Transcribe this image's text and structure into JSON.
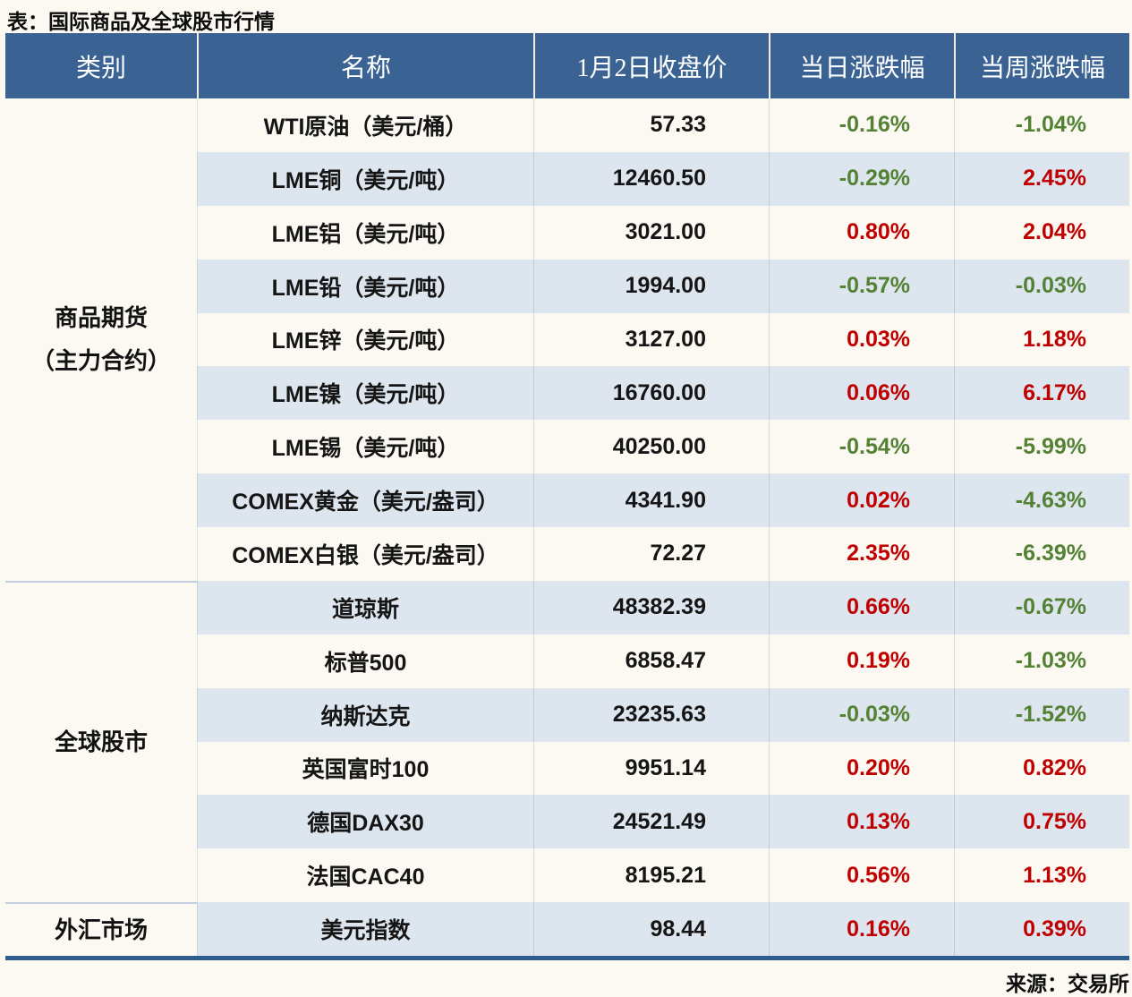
{
  "title": "表：国际商品及全球股市行情",
  "source": "来源：交易所",
  "table": {
    "headers": [
      "类别",
      "名称",
      "1月2日收盘价",
      "当日涨跌幅",
      "当周涨跌幅"
    ]
  },
  "colors": {
    "page_bg": "#fbf9f1",
    "header_bg": "#3a6394",
    "header_text": "#ffffff",
    "stripe_bg": "#dde5ee",
    "up_red": "#c00000",
    "down_green": "#548235",
    "bottom_border": "#2e5c8e",
    "divider": "#c3cfe0"
  },
  "chart_data": {
    "type": "table",
    "title": "表：国际商品及全球股市行情",
    "columns": [
      "类别",
      "名称",
      "1月2日收盘价",
      "当日涨跌幅",
      "当周涨跌幅"
    ],
    "color_rule": "positive change = red (#c00000), negative change = green (#548235); rows alternate cream/light-blue stripes",
    "groups": [
      {
        "category": "商品期货（主力合约）",
        "category_lines": [
          "商品期货",
          "（主力合约）"
        ],
        "rows": [
          [
            "WTI原油（美元/桶）",
            "57.33",
            "-0.16%",
            "-1.04%"
          ],
          [
            "LME铜（美元/吨）",
            "12460.50",
            "-0.29%",
            "2.45%"
          ],
          [
            "LME铝（美元/吨）",
            "3021.00",
            "0.80%",
            "2.04%"
          ],
          [
            "LME铅（美元/吨）",
            "1994.00",
            "-0.57%",
            "-0.03%"
          ],
          [
            "LME锌（美元/吨）",
            "3127.00",
            "0.03%",
            "1.18%"
          ],
          [
            "LME镍（美元/吨）",
            "16760.00",
            "0.06%",
            "6.17%"
          ],
          [
            "LME锡（美元/吨）",
            "40250.00",
            "-0.54%",
            "-5.99%"
          ],
          [
            "COMEX黄金（美元/盎司）",
            "4341.90",
            "0.02%",
            "-4.63%"
          ],
          [
            "COMEX白银（美元/盎司）",
            "72.27",
            "2.35%",
            "-6.39%"
          ]
        ]
      },
      {
        "category": "全球股市",
        "category_lines": [
          "全球股市"
        ],
        "rows": [
          [
            "道琼斯",
            "48382.39",
            "0.66%",
            "-0.67%"
          ],
          [
            "标普500",
            "6858.47",
            "0.19%",
            "-1.03%"
          ],
          [
            "纳斯达克",
            "23235.63",
            "-0.03%",
            "-1.52%"
          ],
          [
            "英国富时100",
            "9951.14",
            "0.20%",
            "0.82%"
          ],
          [
            "德国DAX30",
            "24521.49",
            "0.13%",
            "0.75%"
          ],
          [
            "法国CAC40",
            "8195.21",
            "0.56%",
            "1.13%"
          ]
        ]
      },
      {
        "category": "外汇市场",
        "category_lines": [
          "外汇市场"
        ],
        "rows": [
          [
            "美元指数",
            "98.44",
            "0.16%",
            "0.39%"
          ]
        ]
      }
    ]
  }
}
